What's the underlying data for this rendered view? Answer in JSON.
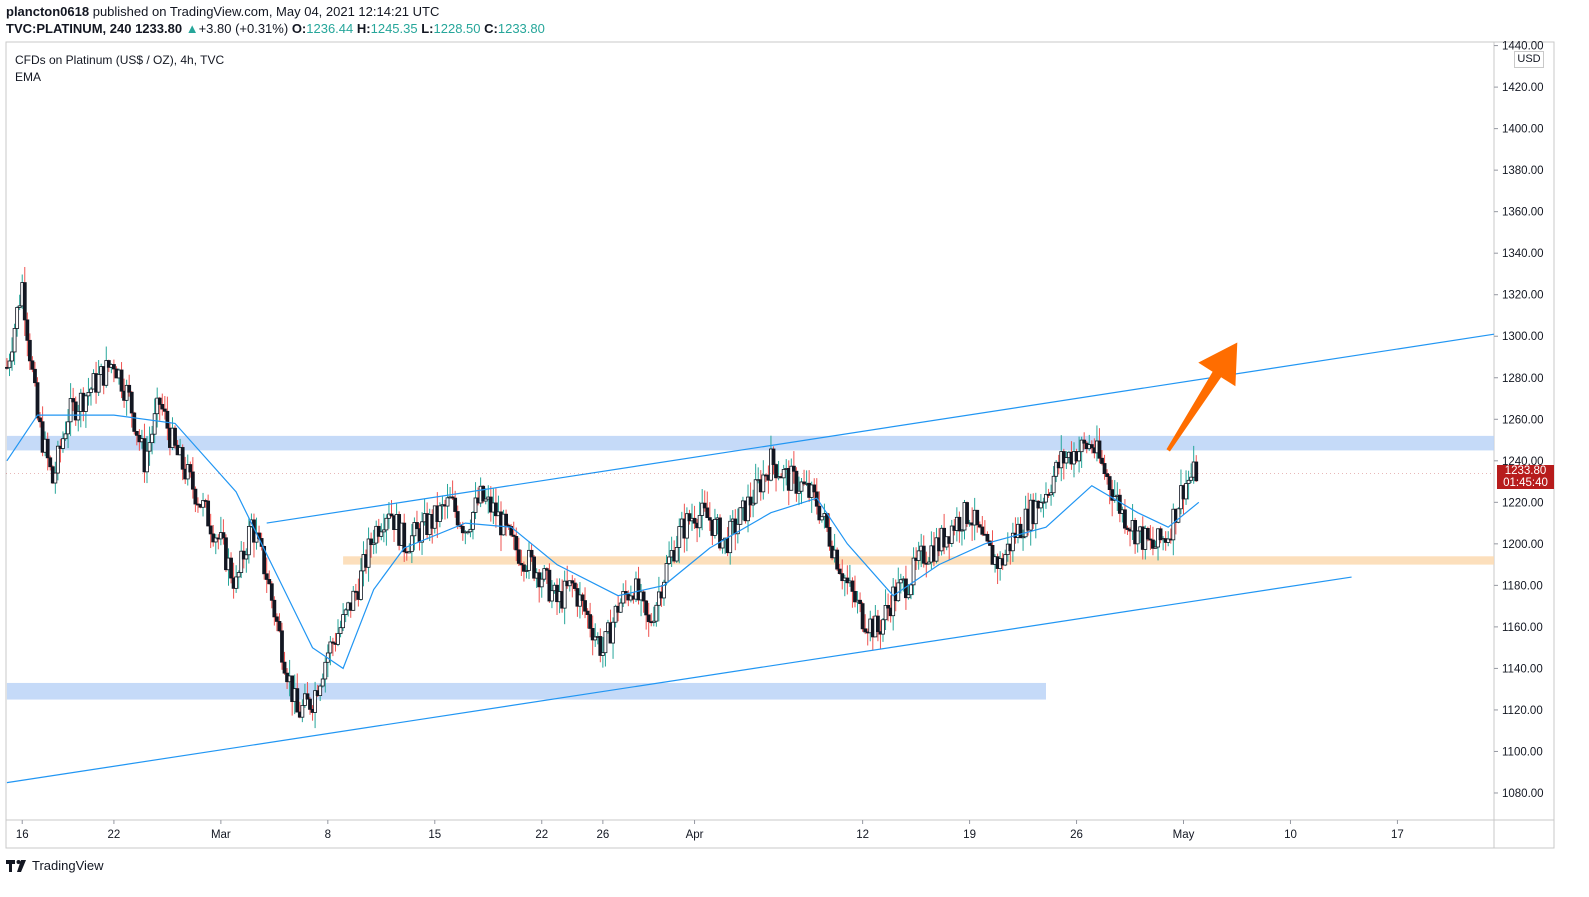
{
  "header": {
    "author": "plancton0618",
    "published": "published on TradingView.com, May 04, 2021 12:14:21 UTC",
    "symbol": "TVC:PLATINUM, 240",
    "last": "1233.80",
    "change": "+3.80 (+0.31%)",
    "o_label": "O:",
    "o_val": "1236.44",
    "h_label": "H:",
    "h_val": "1245.35",
    "l_label": "L:",
    "l_val": "1228.50",
    "c_label": "C:",
    "c_val": "1233.80"
  },
  "legend": {
    "title": "CFDs on Platinum (US$ / OZ), 4h, TVC",
    "indicator": "EMA"
  },
  "axis": {
    "currency": "USD"
  },
  "price_label": {
    "price": "1233.80",
    "countdown": "01:45:40"
  },
  "footer": {
    "brand": "TradingView"
  },
  "colors": {
    "up": "#26a69a",
    "down": "#ef5350",
    "candle": "#131722",
    "ema": "#2196f3",
    "trendline": "#2196f3",
    "zone_blue": "#bbd3f7",
    "zone_orange": "#fcd9b0",
    "arrow": "#ff6d00",
    "price_label": "#b71c1c"
  },
  "chart_data": {
    "type": "candlestick",
    "title": "CFDs on Platinum (US$ / OZ), 4h, TVC",
    "xlabel": "",
    "ylabel": "",
    "ylim": [
      1065,
      1443
    ],
    "y_ticks": [
      1080,
      1100,
      1120,
      1140,
      1160,
      1180,
      1200,
      1220,
      1240,
      1260,
      1280,
      1300,
      1320,
      1340,
      1360,
      1380,
      1400,
      1420,
      1440
    ],
    "x_tick_labels": [
      {
        "label": "16",
        "date": "2021-02-16"
      },
      {
        "label": "22",
        "date": "2021-02-22"
      },
      {
        "label": "Mar",
        "date": "2021-03-01"
      },
      {
        "label": "8",
        "date": "2021-03-08"
      },
      {
        "label": "15",
        "date": "2021-03-15"
      },
      {
        "label": "22",
        "date": "2021-03-22"
      },
      {
        "label": "26",
        "date": "2021-03-26"
      },
      {
        "label": "Apr",
        "date": "2021-04-01"
      },
      {
        "label": "12",
        "date": "2021-04-12"
      },
      {
        "label": "19",
        "date": "2021-04-19"
      },
      {
        "label": "26",
        "date": "2021-04-26"
      },
      {
        "label": "May",
        "date": "2021-05-03"
      },
      {
        "label": "10",
        "date": "2021-05-10"
      },
      {
        "label": "17",
        "date": "2021-05-17"
      }
    ],
    "price_path": [
      [
        "2021-02-15",
        1285
      ],
      [
        "2021-02-16",
        1325
      ],
      [
        "2021-02-17",
        1260
      ],
      [
        "2021-02-18",
        1230
      ],
      [
        "2021-02-19",
        1262
      ],
      [
        "2021-02-22",
        1288
      ],
      [
        "2021-02-23",
        1270
      ],
      [
        "2021-02-24",
        1240
      ],
      [
        "2021-02-25",
        1268
      ],
      [
        "2021-02-26",
        1245
      ],
      [
        "2021-03-01",
        1200
      ],
      [
        "2021-03-02",
        1180
      ],
      [
        "2021-03-03",
        1210
      ],
      [
        "2021-03-04",
        1185
      ],
      [
        "2021-03-05",
        1150
      ],
      [
        "2021-03-06",
        1118
      ],
      [
        "2021-03-07",
        1125
      ],
      [
        "2021-03-08",
        1148
      ],
      [
        "2021-03-09",
        1162
      ],
      [
        "2021-03-10",
        1180
      ],
      [
        "2021-03-11",
        1205
      ],
      [
        "2021-03-12",
        1218
      ],
      [
        "2021-03-13",
        1200
      ],
      [
        "2021-03-15",
        1212
      ],
      [
        "2021-03-16",
        1220
      ],
      [
        "2021-03-17",
        1208
      ],
      [
        "2021-03-18",
        1222
      ],
      [
        "2021-03-19",
        1215
      ],
      [
        "2021-03-20",
        1200
      ],
      [
        "2021-03-22",
        1185
      ],
      [
        "2021-03-23",
        1172
      ],
      [
        "2021-03-24",
        1180
      ],
      [
        "2021-03-25",
        1165
      ],
      [
        "2021-03-26",
        1148
      ],
      [
        "2021-03-27",
        1170
      ],
      [
        "2021-03-28",
        1180
      ],
      [
        "2021-03-29",
        1160
      ],
      [
        "2021-03-30",
        1185
      ],
      [
        "2021-03-31",
        1205
      ],
      [
        "2021-04-01",
        1215
      ],
      [
        "2021-04-02",
        1212
      ],
      [
        "2021-04-03",
        1200
      ],
      [
        "2021-04-05",
        1225
      ],
      [
        "2021-04-06",
        1240
      ],
      [
        "2021-04-07",
        1232
      ],
      [
        "2021-04-08",
        1228
      ],
      [
        "2021-04-09",
        1220
      ],
      [
        "2021-04-10",
        1200
      ],
      [
        "2021-04-11",
        1180
      ],
      [
        "2021-04-12",
        1165
      ],
      [
        "2021-04-13",
        1158
      ],
      [
        "2021-04-14",
        1175
      ],
      [
        "2021-04-15",
        1182
      ],
      [
        "2021-04-16",
        1195
      ],
      [
        "2021-04-17",
        1200
      ],
      [
        "2021-04-18",
        1210
      ],
      [
        "2021-04-19",
        1215
      ],
      [
        "2021-04-20",
        1198
      ],
      [
        "2021-04-21",
        1190
      ],
      [
        "2021-04-22",
        1205
      ],
      [
        "2021-04-23",
        1215
      ],
      [
        "2021-04-24",
        1225
      ],
      [
        "2021-04-25",
        1240
      ],
      [
        "2021-04-26",
        1245
      ],
      [
        "2021-04-27",
        1248
      ],
      [
        "2021-04-28",
        1232
      ],
      [
        "2021-04-29",
        1215
      ],
      [
        "2021-04-30",
        1205
      ],
      [
        "2021-05-01",
        1198
      ],
      [
        "2021-05-02",
        1205
      ],
      [
        "2021-05-03",
        1228
      ],
      [
        "2021-05-04",
        1236
      ]
    ],
    "ema_path": [
      [
        "2021-02-15",
        1240
      ],
      [
        "2021-02-17",
        1262
      ],
      [
        "2021-02-22",
        1262
      ],
      [
        "2021-02-26",
        1258
      ],
      [
        "2021-03-02",
        1225
      ],
      [
        "2021-03-05",
        1180
      ],
      [
        "2021-03-07",
        1150
      ],
      [
        "2021-03-09",
        1140
      ],
      [
        "2021-03-11",
        1178
      ],
      [
        "2021-03-13",
        1198
      ],
      [
        "2021-03-17",
        1210
      ],
      [
        "2021-03-20",
        1208
      ],
      [
        "2021-03-23",
        1190
      ],
      [
        "2021-03-27",
        1175
      ],
      [
        "2021-03-30",
        1180
      ],
      [
        "2021-04-02",
        1198
      ],
      [
        "2021-04-06",
        1215
      ],
      [
        "2021-04-09",
        1222
      ],
      [
        "2021-04-11",
        1200
      ],
      [
        "2021-04-14",
        1175
      ],
      [
        "2021-04-17",
        1190
      ],
      [
        "2021-04-20",
        1200
      ],
      [
        "2021-04-24",
        1208
      ],
      [
        "2021-04-27",
        1228
      ],
      [
        "2021-04-30",
        1215
      ],
      [
        "2021-05-02",
        1208
      ],
      [
        "2021-05-04",
        1220
      ]
    ],
    "zones": [
      {
        "from": "2021-02-15",
        "to": "2021-05-24",
        "low": 1245,
        "high": 1252,
        "color": "blue"
      },
      {
        "from": "2021-03-09",
        "to": "2021-05-24",
        "low": 1190,
        "high": 1194,
        "color": "orange"
      },
      {
        "from": "2021-02-15",
        "to": "2021-04-24",
        "low": 1125,
        "high": 1133,
        "color": "blue"
      }
    ],
    "trendlines": [
      {
        "from": [
          "2021-02-15",
          1085
        ],
        "to": [
          "2021-05-14",
          1184
        ]
      },
      {
        "from": [
          "2021-03-04",
          1210
        ],
        "to": [
          "2021-05-24",
          1301
        ]
      }
    ],
    "arrow": {
      "from": [
        "2021-05-02",
        1245
      ],
      "to": [
        "2021-05-06",
        1297
      ]
    },
    "last_price": 1233.8
  }
}
